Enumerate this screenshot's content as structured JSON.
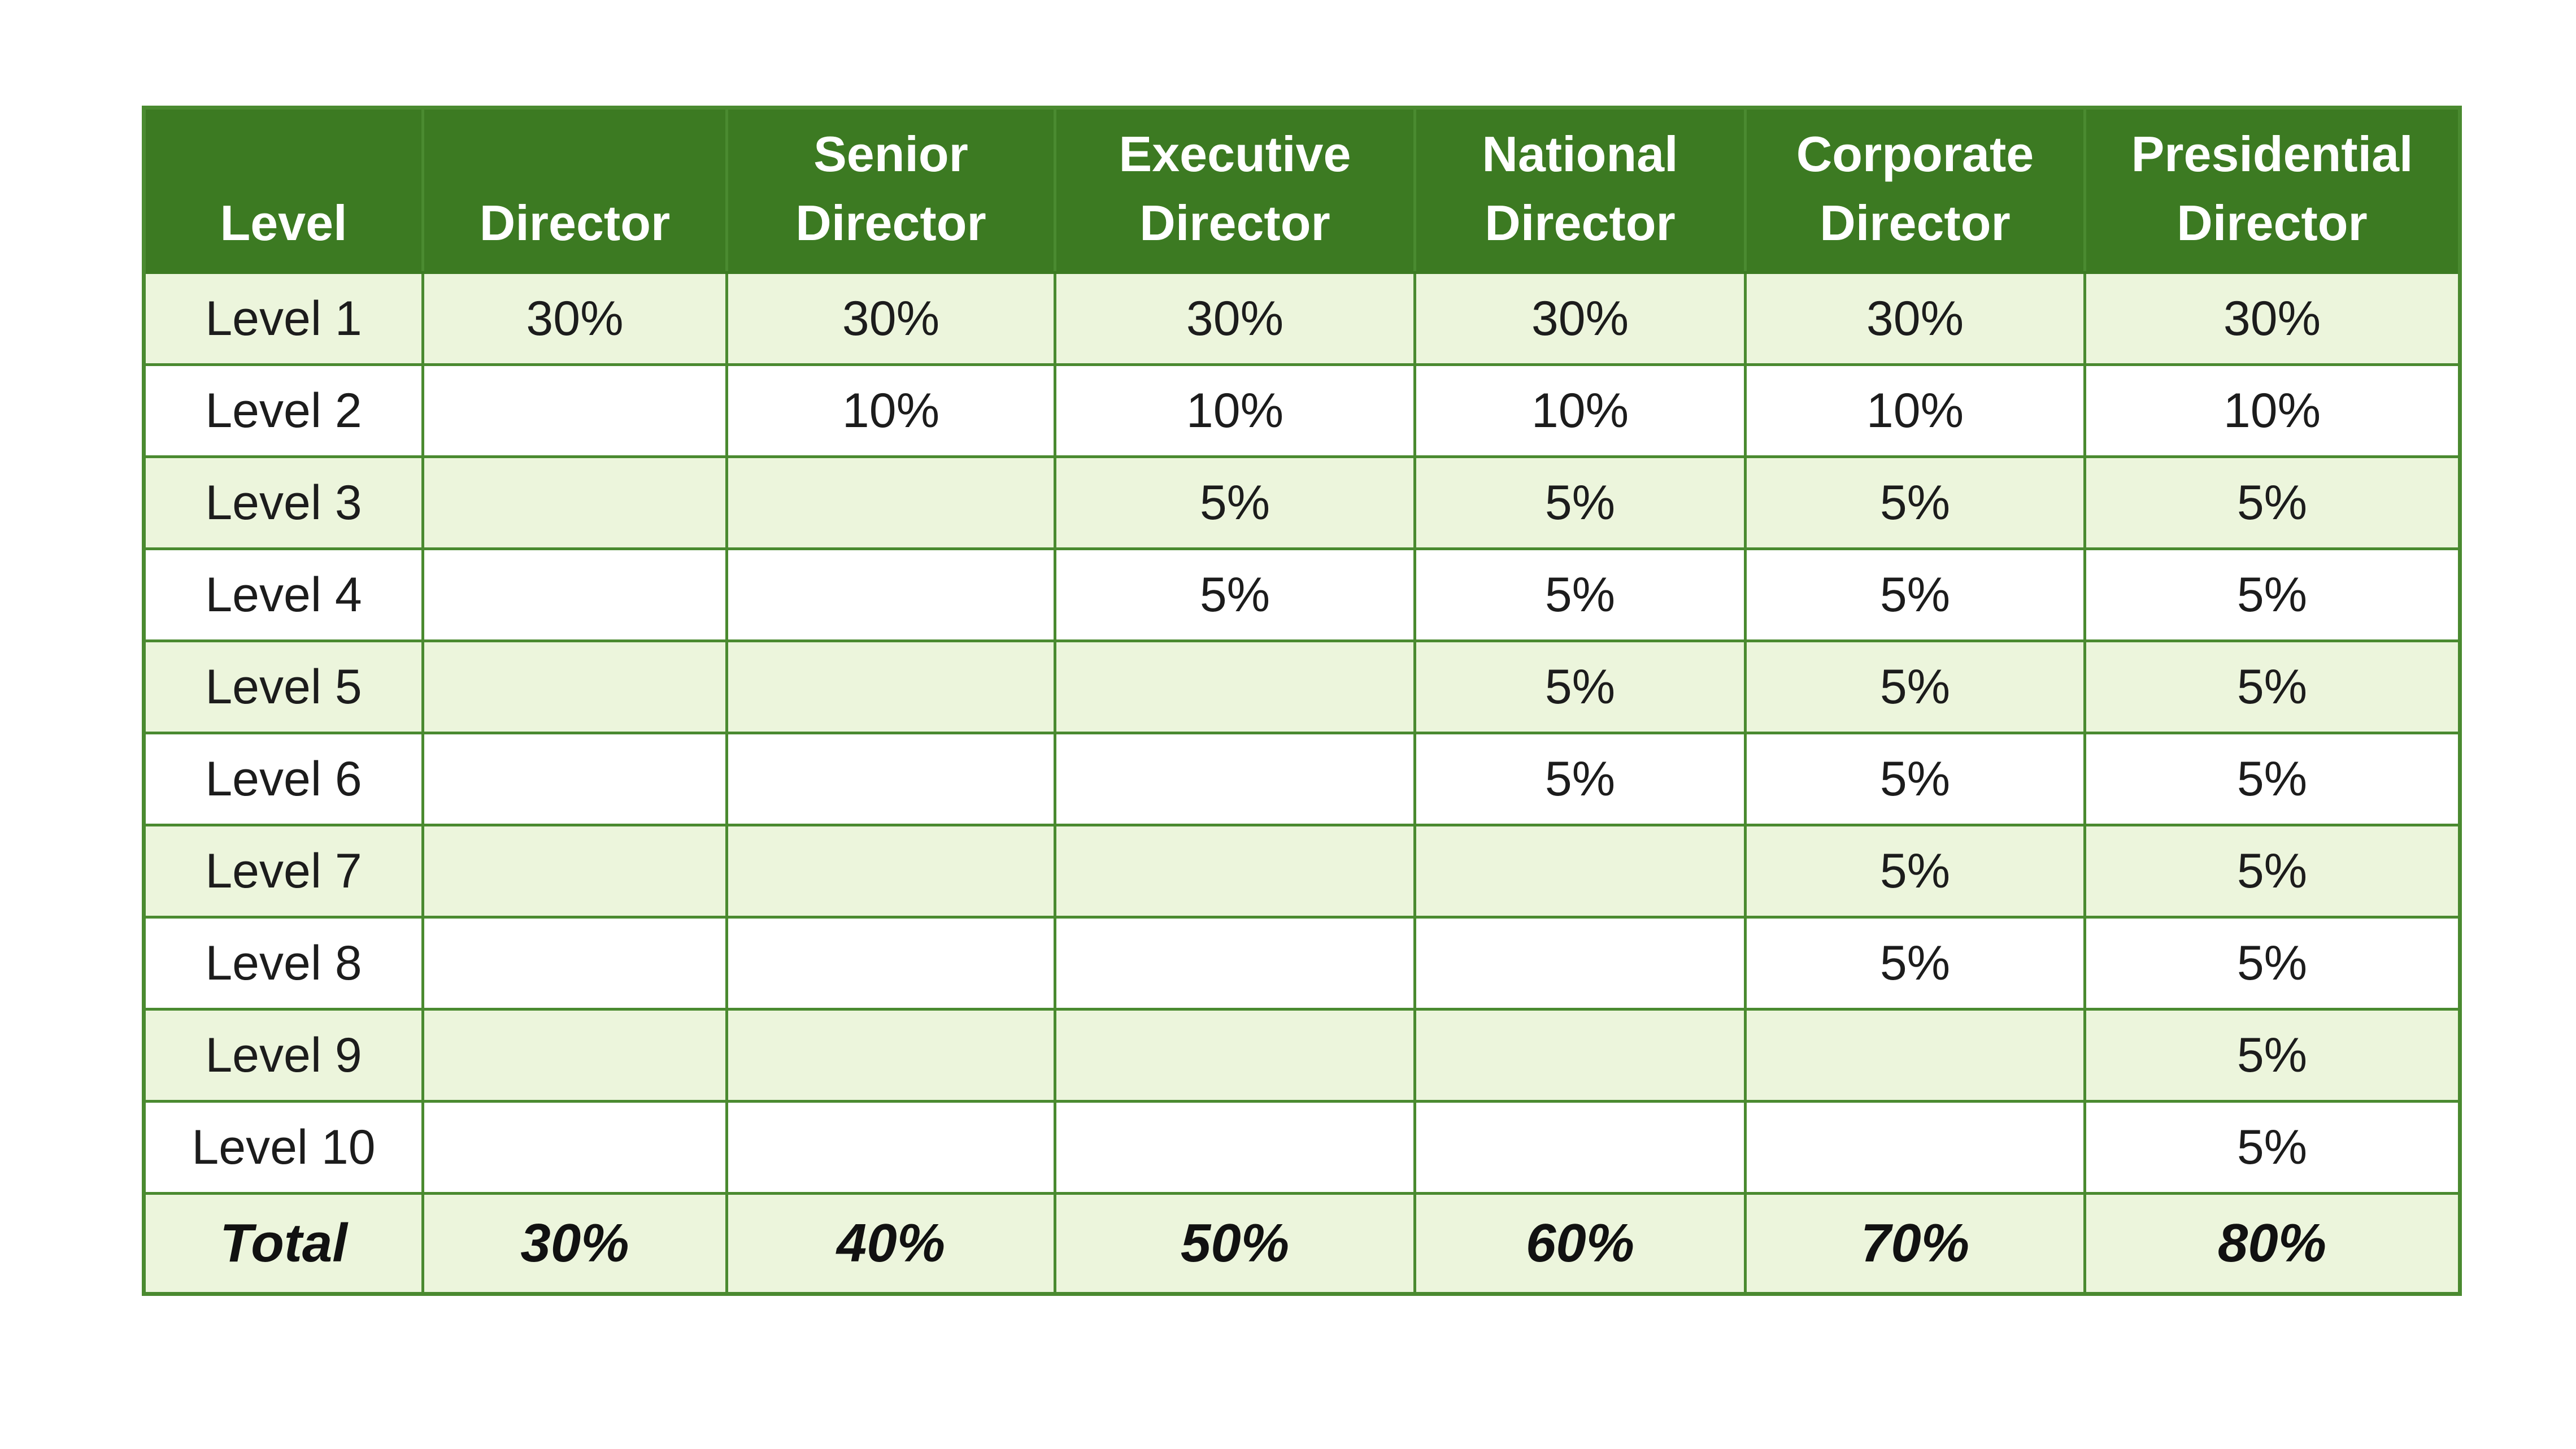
{
  "table": {
    "headers": [
      [
        "Level"
      ],
      [
        "Director"
      ],
      [
        "Senior",
        "Director"
      ],
      [
        "Executive",
        "Director"
      ],
      [
        "National",
        "Director"
      ],
      [
        "Corporate",
        "Director"
      ],
      [
        "Presidential",
        "Director"
      ]
    ],
    "rows": [
      [
        "Level 1",
        "30%",
        "30%",
        "30%",
        "30%",
        "30%",
        "30%"
      ],
      [
        "Level 2",
        "",
        "10%",
        "10%",
        "10%",
        "10%",
        "10%"
      ],
      [
        "Level 3",
        "",
        "",
        "5%",
        "5%",
        "5%",
        "5%"
      ],
      [
        "Level 4",
        "",
        "",
        "5%",
        "5%",
        "5%",
        "5%"
      ],
      [
        "Level 5",
        "",
        "",
        "",
        "5%",
        "5%",
        "5%"
      ],
      [
        "Level 6",
        "",
        "",
        "",
        "5%",
        "5%",
        "5%"
      ],
      [
        "Level 7",
        "",
        "",
        "",
        "",
        "5%",
        "5%"
      ],
      [
        "Level 8",
        "",
        "",
        "",
        "",
        "5%",
        "5%"
      ],
      [
        "Level 9",
        "",
        "",
        "",
        "",
        "",
        "5%"
      ],
      [
        "Level 10",
        "",
        "",
        "",
        "",
        "",
        "5%"
      ]
    ],
    "total": [
      "Total",
      "30%",
      "40%",
      "50%",
      "60%",
      "70%",
      "80%"
    ]
  },
  "colors": {
    "header_background": "#3c7a22",
    "header_text": "#ffffff",
    "grid_line": "#4a8a30",
    "shaded_row": "#ecf5dc",
    "plain_row": "#ffffff"
  }
}
